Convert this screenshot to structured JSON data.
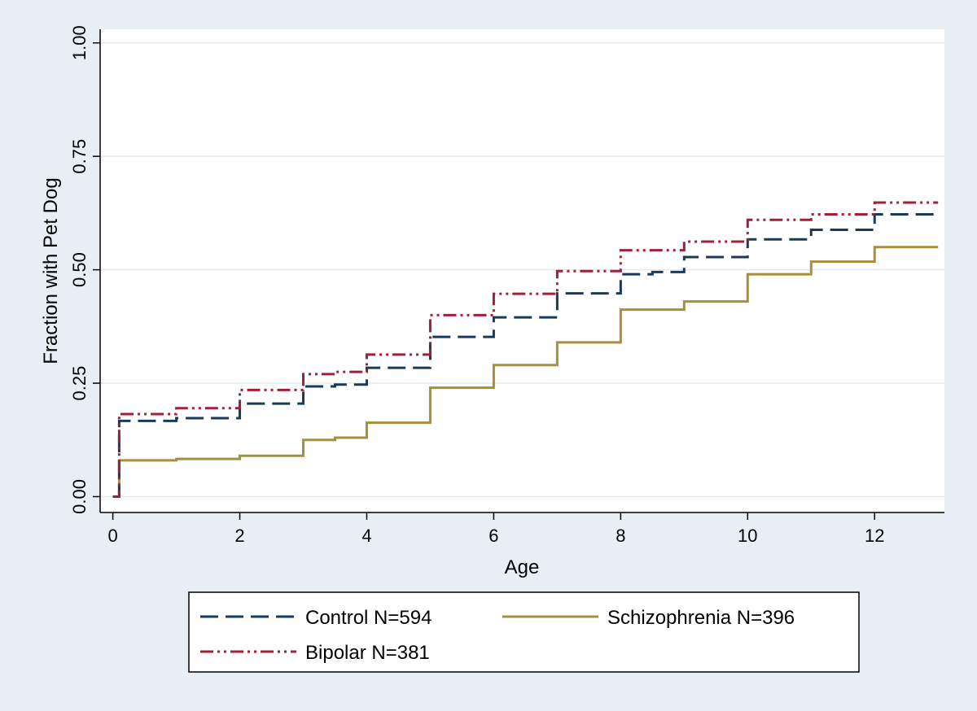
{
  "chart_data": {
    "type": "line",
    "title": "",
    "xlabel": "Age",
    "ylabel": "Fraction with Pet Dog",
    "xlim": [
      -0.2,
      13.1
    ],
    "ylim": [
      -0.035,
      1.03
    ],
    "x_ticks": [
      0,
      2,
      4,
      6,
      8,
      10,
      12
    ],
    "x_tick_labels": [
      "0",
      "2",
      "4",
      "6",
      "8",
      "10",
      "12"
    ],
    "y_ticks": [
      0,
      0.25,
      0.5,
      0.75,
      1
    ],
    "y_tick_labels": [
      "0.00",
      "0.25",
      "0.50",
      "0.75",
      "1.00"
    ],
    "grid": true,
    "legend_position": "bottom",
    "step": true,
    "series": [
      {
        "name": "Control N=594",
        "style": "dashed",
        "color": "#1a3a5c",
        "x": [
          0,
          0.1,
          1,
          2,
          3,
          3.5,
          4,
          5,
          6,
          7,
          8,
          8.5,
          9,
          10,
          11,
          12,
          13
        ],
        "y": [
          0,
          0.167,
          0.173,
          0.205,
          0.243,
          0.247,
          0.284,
          0.352,
          0.395,
          0.448,
          0.49,
          0.495,
          0.528,
          0.567,
          0.588,
          0.622,
          0.622
        ]
      },
      {
        "name": "Schizophrenia N=396",
        "style": "solid",
        "color": "#a88f3a",
        "x": [
          0,
          0.1,
          1,
          2,
          3,
          3.5,
          4,
          5,
          6,
          7,
          8,
          9,
          10,
          11,
          12,
          13
        ],
        "y": [
          0,
          0.08,
          0.083,
          0.09,
          0.125,
          0.13,
          0.163,
          0.24,
          0.29,
          0.34,
          0.412,
          0.43,
          0.49,
          0.518,
          0.55,
          0.55
        ]
      },
      {
        "name": "Bipolar N=381",
        "style": "dashdot",
        "color": "#a0203a",
        "x": [
          0,
          0.1,
          1,
          2,
          3,
          3.5,
          4,
          5,
          6,
          7,
          8,
          9,
          10,
          11,
          12,
          13
        ],
        "y": [
          0,
          0.182,
          0.195,
          0.235,
          0.27,
          0.275,
          0.313,
          0.4,
          0.447,
          0.497,
          0.543,
          0.562,
          0.61,
          0.622,
          0.648,
          0.648
        ]
      }
    ]
  }
}
